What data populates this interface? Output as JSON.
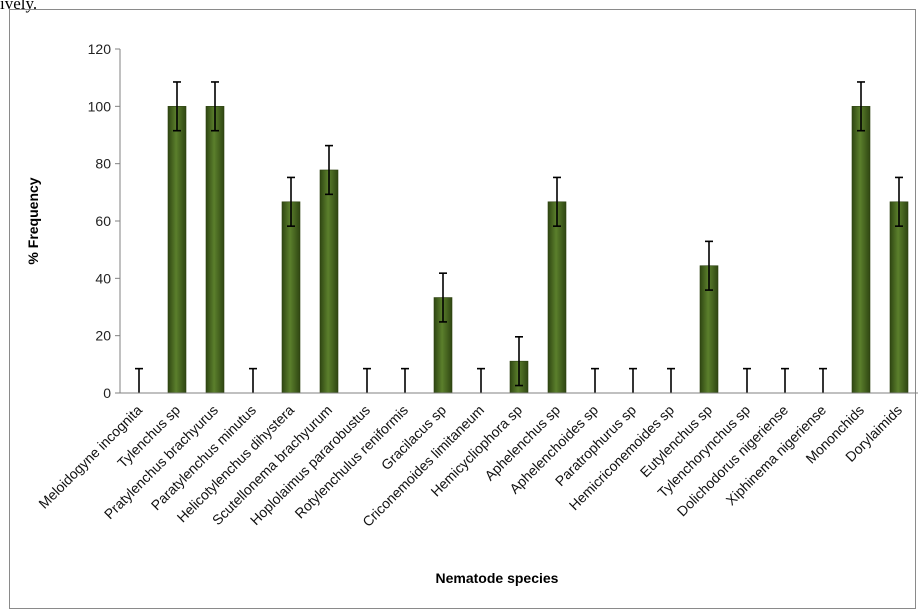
{
  "page_text": "ively.",
  "chart_data": {
    "type": "bar",
    "xlabel": "Nematode species",
    "ylabel": "% Frequency",
    "ylim": [
      0,
      120
    ],
    "yticks": [
      0,
      20,
      40,
      60,
      80,
      100,
      120
    ],
    "grid": false,
    "legend": "none",
    "bar_color": "#4a6a22",
    "categories": [
      "Meloidogyne incognita",
      "Tylenchus sp",
      "Pratylenchus brachyurus",
      "Paratylenchus minutus",
      "Helicotylenchus dihystera",
      "Scutellonema brachyurum",
      "Hoplolaimus pararobustus",
      "Rotylenchulus reniformis",
      "Gracilacus sp",
      "Criconemoides limitaneum",
      "Hemicycliophora sp",
      "Aphelenchus sp",
      "Aphelenchoides sp",
      "Paratrophurus sp",
      "Hemicriconemoides sp",
      "Eutylenchus sp",
      "Tylenchorynchus sp",
      "Dolichodorus nigeriense",
      "Xiphinema nigeriense",
      "Mononchids",
      "Dorylaimids"
    ],
    "values": [
      0,
      100,
      100,
      0,
      66.7,
      77.8,
      0,
      0,
      33.3,
      0,
      11.1,
      66.7,
      0,
      0,
      0,
      44.4,
      0,
      0,
      0,
      100,
      66.7
    ],
    "error": [
      8.5,
      8.5,
      8.5,
      8.5,
      8.5,
      8.5,
      8.5,
      8.5,
      8.5,
      8.5,
      8.5,
      8.5,
      8.5,
      8.5,
      8.5,
      8.5,
      8.5,
      8.5,
      8.5,
      8.5,
      8.5
    ]
  }
}
